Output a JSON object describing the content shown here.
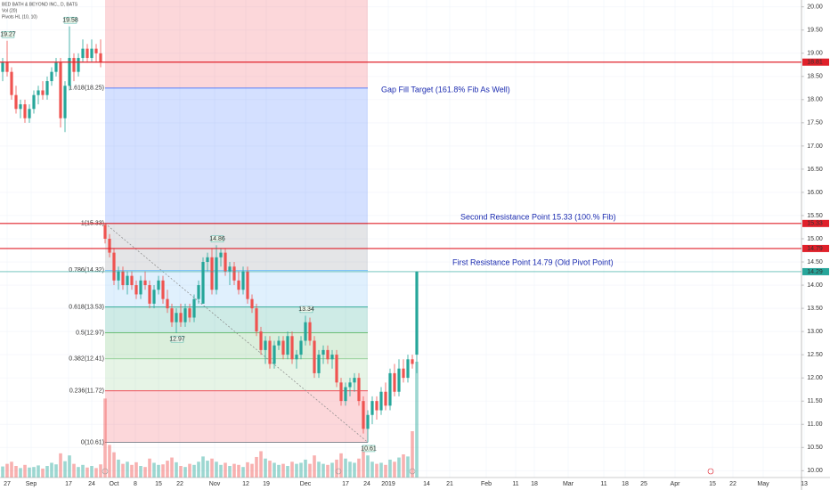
{
  "chart_data": {
    "type": "candlestick",
    "title": "BED BATH & BEYOND INC., D, BATS",
    "indicators": [
      "Vol (20)",
      "Pivots HL (10, 10)"
    ],
    "up_color": "#26a69a",
    "down_color": "#ef5350",
    "ylim": [
      9.85,
      20.15
    ],
    "yticks": [
      {
        "value": 10,
        "label": "10.00"
      },
      {
        "value": 10.5,
        "label": "10.50"
      },
      {
        "value": 11,
        "label": "11.00"
      },
      {
        "value": 11.5,
        "label": "11.50"
      },
      {
        "value": 12,
        "label": "12.00"
      },
      {
        "value": 12.5,
        "label": "12.50"
      },
      {
        "value": 13,
        "label": "13.00"
      },
      {
        "value": 13.5,
        "label": "13.50"
      },
      {
        "value": 14,
        "label": "14.00"
      },
      {
        "value": 14.5,
        "label": "14.50"
      },
      {
        "value": 15,
        "label": "15.00"
      },
      {
        "value": 15.5,
        "label": "15.50"
      },
      {
        "value": 16,
        "label": "16.00"
      },
      {
        "value": 16.5,
        "label": "16.50"
      },
      {
        "value": 17,
        "label": "17.00"
      },
      {
        "value": 17.5,
        "label": "17.50"
      },
      {
        "value": 18,
        "label": "18.00"
      },
      {
        "value": 18.5,
        "label": "18.50"
      },
      {
        "value": 19,
        "label": "19.00"
      },
      {
        "value": 19.5,
        "label": "19.50"
      },
      {
        "value": 20,
        "label": "20.00"
      }
    ],
    "x_labels": [
      "27",
      "Sep",
      "17",
      "24",
      "Oct",
      "8",
      "15",
      "22",
      "Nov",
      "12",
      "19",
      "Dec",
      "17",
      "24",
      "2019",
      "14",
      "21",
      "Feb",
      "11",
      "18",
      "Mar",
      "11",
      "18",
      "25",
      "Apr",
      "15",
      "22",
      "May",
      "13"
    ],
    "candles": [
      [
        18.6,
        18.9,
        18.4,
        18.8
      ],
      [
        18.8,
        19.27,
        18.5,
        18.6
      ],
      [
        18.6,
        18.7,
        18.0,
        18.1
      ],
      [
        18.1,
        18.3,
        17.7,
        17.8
      ],
      [
        17.8,
        18.0,
        17.6,
        17.9
      ],
      [
        17.9,
        18.0,
        17.5,
        17.6
      ],
      [
        17.6,
        17.9,
        17.5,
        17.8
      ],
      [
        17.8,
        18.2,
        17.7,
        18.1
      ],
      [
        18.1,
        18.3,
        17.9,
        18.2
      ],
      [
        18.2,
        18.4,
        18.0,
        18.1
      ],
      [
        18.1,
        18.5,
        18.0,
        18.4
      ],
      [
        18.4,
        18.7,
        18.3,
        18.6
      ],
      [
        18.6,
        18.9,
        18.5,
        18.8
      ],
      [
        18.8,
        18.9,
        17.4,
        17.6
      ],
      [
        17.6,
        18.4,
        17.3,
        18.3
      ],
      [
        18.3,
        19.58,
        18.2,
        18.9
      ],
      [
        18.9,
        19.0,
        18.4,
        18.6
      ],
      [
        18.6,
        19.0,
        18.5,
        18.9
      ],
      [
        18.9,
        19.3,
        18.8,
        19.1
      ],
      [
        19.1,
        19.2,
        18.8,
        18.9
      ],
      [
        18.9,
        19.3,
        18.8,
        19.1
      ],
      [
        19.1,
        19.2,
        18.8,
        19.0
      ],
      [
        19.0,
        19.3,
        18.7,
        18.8
      ],
      [
        15.3,
        15.33,
        14.9,
        15.0
      ],
      [
        15.0,
        15.1,
        14.6,
        14.7
      ],
      [
        14.7,
        14.8,
        14.0,
        14.1
      ],
      [
        14.1,
        14.4,
        13.9,
        14.3
      ],
      [
        14.3,
        14.4,
        13.9,
        14.0
      ],
      [
        14.0,
        14.3,
        13.8,
        14.2
      ],
      [
        14.2,
        14.3,
        13.9,
        14.0
      ],
      [
        14.0,
        14.1,
        13.7,
        13.8
      ],
      [
        13.8,
        14.2,
        13.7,
        14.1
      ],
      [
        14.1,
        14.3,
        13.9,
        14.0
      ],
      [
        14.0,
        14.1,
        13.5,
        13.6
      ],
      [
        13.6,
        14.0,
        13.5,
        13.9
      ],
      [
        13.9,
        14.2,
        13.8,
        14.1
      ],
      [
        14.1,
        14.2,
        13.6,
        13.7
      ],
      [
        13.7,
        13.9,
        13.4,
        13.5
      ],
      [
        13.5,
        13.6,
        13.1,
        13.2
      ],
      [
        13.2,
        13.5,
        12.97,
        13.4
      ],
      [
        13.4,
        13.6,
        13.1,
        13.2
      ],
      [
        13.2,
        13.6,
        13.1,
        13.5
      ],
      [
        13.5,
        13.6,
        13.2,
        13.3
      ],
      [
        13.3,
        13.8,
        13.2,
        13.7
      ],
      [
        13.7,
        14.1,
        13.6,
        14.0
      ],
      [
        13.6,
        14.6,
        13.6,
        14.5
      ],
      [
        14.5,
        14.7,
        14.3,
        14.6
      ],
      [
        14.6,
        14.8,
        13.8,
        13.9
      ],
      [
        13.9,
        14.86,
        13.8,
        14.6
      ],
      [
        14.6,
        14.8,
        14.4,
        14.7
      ],
      [
        14.7,
        14.8,
        14.2,
        14.3
      ],
      [
        14.3,
        14.5,
        14.0,
        14.4
      ],
      [
        14.4,
        14.5,
        14.0,
        14.1
      ],
      [
        14.1,
        14.3,
        13.8,
        13.9
      ],
      [
        13.9,
        14.4,
        13.8,
        14.3
      ],
      [
        14.3,
        14.4,
        13.6,
        13.7
      ],
      [
        13.7,
        13.8,
        13.4,
        13.5
      ],
      [
        13.5,
        13.6,
        12.9,
        13.0
      ],
      [
        13.0,
        13.1,
        12.5,
        12.6
      ],
      [
        12.6,
        12.9,
        12.3,
        12.8
      ],
      [
        12.8,
        12.9,
        12.2,
        12.3
      ],
      [
        12.3,
        12.8,
        12.2,
        12.7
      ],
      [
        12.7,
        12.9,
        12.6,
        12.8
      ],
      [
        12.8,
        12.9,
        12.4,
        12.5
      ],
      [
        12.5,
        13.0,
        12.4,
        12.9
      ],
      [
        12.9,
        13.0,
        12.3,
        12.4
      ],
      [
        12.4,
        12.6,
        12.2,
        12.5
      ],
      [
        12.5,
        12.9,
        12.4,
        12.8
      ],
      [
        12.8,
        13.34,
        12.7,
        13.2
      ],
      [
        13.2,
        13.3,
        12.7,
        12.8
      ],
      [
        12.8,
        12.9,
        12.0,
        12.1
      ],
      [
        12.1,
        12.6,
        12.0,
        12.5
      ],
      [
        12.5,
        12.7,
        12.3,
        12.6
      ],
      [
        12.6,
        12.7,
        12.3,
        12.4
      ],
      [
        12.4,
        12.6,
        12.2,
        12.5
      ],
      [
        12.5,
        12.6,
        11.8,
        11.9
      ],
      [
        11.9,
        12.0,
        11.4,
        11.5
      ],
      [
        11.5,
        11.9,
        11.4,
        11.8
      ],
      [
        11.8,
        12.0,
        11.6,
        11.9
      ],
      [
        11.9,
        12.1,
        11.7,
        12.0
      ],
      [
        12.0,
        12.1,
        11.4,
        11.5
      ],
      [
        11.5,
        11.6,
        10.8,
        10.9
      ],
      [
        10.9,
        11.3,
        10.61,
        11.2
      ],
      [
        11.2,
        11.6,
        11.0,
        11.5
      ],
      [
        11.5,
        11.6,
        11.1,
        11.3
      ],
      [
        11.3,
        11.8,
        11.2,
        11.7
      ],
      [
        11.7,
        11.9,
        11.3,
        11.4
      ],
      [
        11.4,
        12.2,
        11.3,
        12.1
      ],
      [
        12.1,
        12.3,
        11.6,
        11.7
      ],
      [
        11.7,
        12.4,
        11.6,
        12.2
      ],
      [
        12.2,
        12.4,
        11.9,
        12.0
      ],
      [
        12.0,
        12.5,
        11.9,
        12.4
      ],
      [
        12.4,
        12.5,
        12.2,
        12.3
      ],
      [
        12.5,
        14.3,
        12.1,
        14.29
      ]
    ],
    "volume": [
      2.1,
      2.6,
      3.0,
      2.2,
      1.8,
      2.4,
      1.9,
      2.0,
      2.3,
      1.7,
      2.2,
      2.8,
      2.5,
      4.6,
      3.1,
      4.2,
      2.6,
      2.0,
      2.4,
      1.9,
      2.2,
      1.8,
      2.5,
      15.0,
      6.2,
      4.8,
      3.4,
      2.6,
      3.0,
      2.4,
      2.9,
      2.2,
      2.0,
      3.6,
      2.8,
      2.4,
      2.5,
      3.2,
      3.8,
      2.9,
      2.2,
      2.0,
      2.6,
      2.4,
      3.0,
      4.0,
      3.2,
      3.6,
      3.0,
      2.4,
      2.8,
      2.2,
      2.6,
      2.4,
      2.0,
      2.9,
      2.6,
      3.9,
      5.0,
      3.6,
      3.2,
      2.8,
      2.4,
      2.6,
      2.2,
      3.0,
      2.6,
      2.8,
      3.4,
      2.6,
      4.2,
      3.0,
      2.6,
      2.4,
      2.8,
      3.4,
      4.6,
      3.6,
      3.0,
      2.8,
      3.6,
      5.6,
      4.2,
      3.0,
      2.6,
      2.8,
      2.4,
      3.4,
      3.0,
      3.8,
      4.4,
      4.0,
      8.8,
      22.0
    ],
    "fib_levels": [
      {
        "label": "1.618(18.25)",
        "value": 18.25,
        "color": "#2962ff"
      },
      {
        "label": "1(15.33)",
        "value": 15.33,
        "color": "#787b86"
      },
      {
        "label": "0.786(14.32)",
        "value": 14.32,
        "color": "#64b5f6"
      },
      {
        "label": "0.618(13.53)",
        "value": 13.53,
        "color": "#089981"
      },
      {
        "label": "0.5(12.97)",
        "value": 12.97,
        "color": "#4caf50"
      },
      {
        "label": "0.382(12.41)",
        "value": 12.41,
        "color": "#81c784"
      },
      {
        "label": "0.236(11.72)",
        "value": 11.72,
        "color": "#f23645"
      },
      {
        "label": "0(10.61)",
        "value": 10.61,
        "color": "#787b86"
      }
    ],
    "fib_top_color": "#f23645",
    "hlines": [
      {
        "value": 18.81,
        "color": "#e0202a"
      },
      {
        "value": 15.33,
        "color": "#e0202a"
      },
      {
        "value": 14.79,
        "color": "#e0202a"
      },
      {
        "value": 14.29,
        "color": "#26a69a"
      }
    ],
    "pivots": [
      19.27,
      19.58,
      12.97,
      14.86,
      13.34,
      10.61
    ],
    "annotations": [
      "Gap Fill Target (161.8% Fib As Well)",
      "Second Resistance Point 15.33 (100.% Fib)",
      "First Resistance Point 14.79 (Old Pivot Point)"
    ]
  }
}
